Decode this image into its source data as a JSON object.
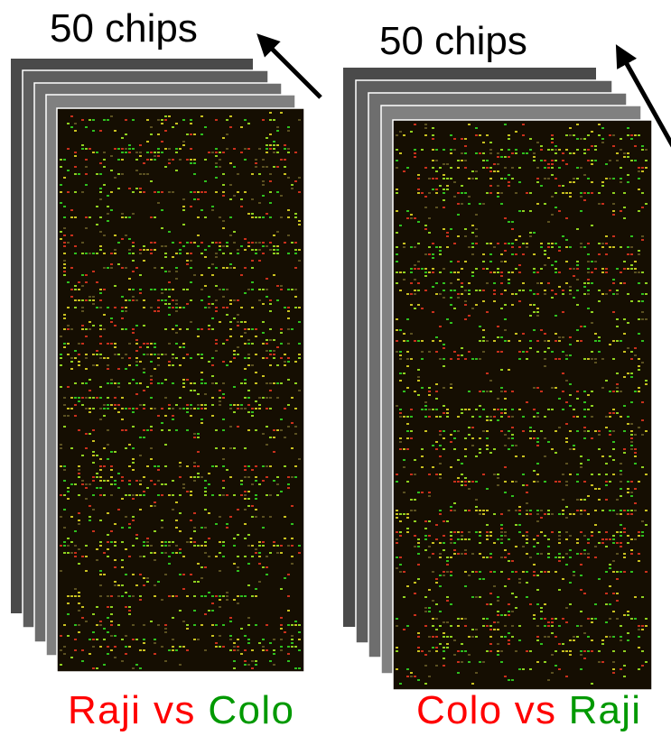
{
  "panels": [
    {
      "count_label": "50 chips",
      "label_first": "Raji",
      "label_vs": "vs",
      "label_second": "Colo"
    },
    {
      "count_label": "50 chips",
      "label_first": "Colo",
      "label_vs": "vs",
      "label_second": "Raji"
    }
  ]
}
